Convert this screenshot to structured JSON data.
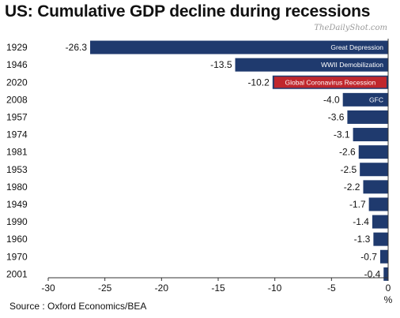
{
  "title": "US: Cumulative GDP decline during recessions",
  "watermark": "TheDailyShot.com",
  "source": "Source : Oxford Economics/BEA",
  "colors": {
    "bar": "#1f3a6e",
    "highlight": "#c0272d"
  },
  "chart_data": {
    "type": "bar",
    "orientation": "horizontal",
    "title": "US: Cumulative GDP decline during recessions",
    "xlabel": "%",
    "xlim": [
      -30,
      0
    ],
    "xticks": [
      -30,
      -25,
      -20,
      -15,
      -10,
      -5,
      0
    ],
    "grid": false,
    "categories": [
      "1929",
      "1946",
      "2020",
      "2008",
      "1957",
      "1974",
      "1981",
      "1953",
      "1980",
      "1949",
      "1990",
      "1960",
      "1970",
      "2001"
    ],
    "values": [
      -26.3,
      -13.5,
      -10.2,
      -4.0,
      -3.6,
      -3.1,
      -2.6,
      -2.5,
      -2.2,
      -1.7,
      -1.4,
      -1.3,
      -0.7,
      -0.4
    ],
    "value_labels": [
      "-26.3",
      "-13.5",
      "-10.2",
      "-4.0",
      "-3.6",
      "-3.1",
      "-2.6",
      "-2.5",
      "-2.2",
      "-1.7",
      "-1.4",
      "-1.3",
      "-0.7",
      "-0.4"
    ],
    "annotations": [
      {
        "category": "1929",
        "text": "Great Depression"
      },
      {
        "category": "1946",
        "text": "WWII Demobilization"
      },
      {
        "category": "2020",
        "text": "Global Coronavirus Recession",
        "highlight": true
      },
      {
        "category": "2008",
        "text": "GFC"
      }
    ]
  }
}
